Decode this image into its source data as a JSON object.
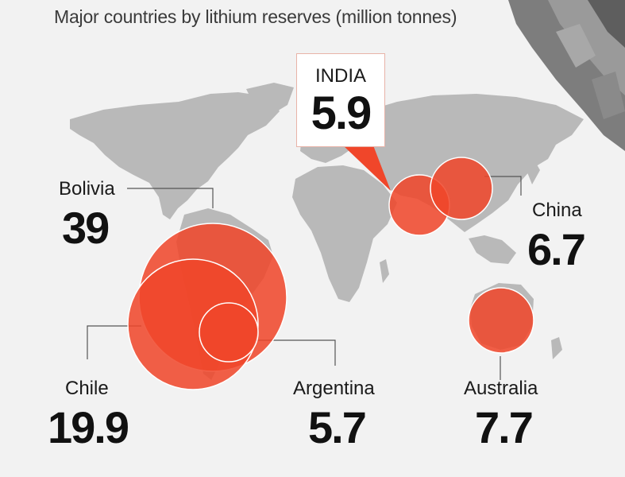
{
  "title": "Major countries by lithium reserves (million tonnes)",
  "chart_data": {
    "type": "bubble-map",
    "title": "Major countries by lithium reserves (million tonnes)",
    "unit": "million tonnes",
    "bubble_color": "#f0462a",
    "map_color": "#b9b9b9",
    "countries": [
      {
        "name": "Bolivia",
        "value": 39
      },
      {
        "name": "Chile",
        "value": 19.9
      },
      {
        "name": "Argentina",
        "value": 5.7
      },
      {
        "name": "INDIA",
        "value": 5.9
      },
      {
        "name": "China",
        "value": 6.7
      },
      {
        "name": "Australia",
        "value": 7.7
      }
    ]
  },
  "labels": {
    "bolivia": {
      "name": "Bolivia",
      "value": "39"
    },
    "chile": {
      "name": "Chile",
      "value": "19.9"
    },
    "argentina": {
      "name": "Argentina",
      "value": "5.7"
    },
    "india": {
      "name": "INDIA",
      "value": "5.9"
    },
    "china": {
      "name": "China",
      "value": "6.7"
    },
    "australia": {
      "name": "Australia",
      "value": "7.7"
    }
  }
}
